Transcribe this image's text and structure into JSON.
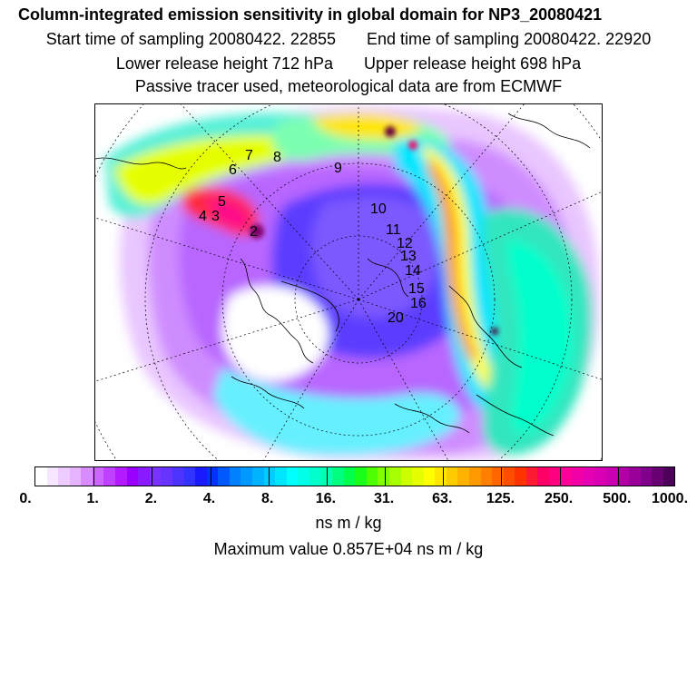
{
  "title": {
    "main": "Column-integrated emission sensitivity in global domain for NP3_20080421",
    "start_label": "Start time of sampling 20080422. 22855",
    "end_label": "End time of sampling 20080422. 22920",
    "lower_label": "Lower release height  712 hPa",
    "upper_label": "Upper release height  698 hPa",
    "tracer_label": "Passive tracer used, meteorological data are from ECMWF"
  },
  "trajectory_labels": [
    "2",
    "3",
    "4",
    "5",
    "6",
    "7",
    "8",
    "9",
    "10",
    "11",
    "12",
    "13",
    "14",
    "15",
    "16",
    "20"
  ],
  "colorbar": {
    "tick_labels": [
      "0.",
      "1.",
      "2.",
      "4.",
      "8.",
      "16.",
      "31.",
      "63.",
      "125.",
      "250.",
      "500.",
      "1000."
    ],
    "colors": [
      "#ffffff",
      "#f7e6ff",
      "#efccff",
      "#e6b3ff",
      "#d98cff",
      "#cc66ff",
      "#bf40ff",
      "#b31aff",
      "#9900ff",
      "#8a1aff",
      "#7a33ff",
      "#6633ff",
      "#4d33ff",
      "#3333ff",
      "#1a1aff",
      "#0033ff",
      "#0059ff",
      "#0080ff",
      "#0099ff",
      "#00b3ff",
      "#00ccff",
      "#00e6ff",
      "#00ffff",
      "#00ffe6",
      "#00ffcc",
      "#00ffb3",
      "#00ff80",
      "#00ff4d",
      "#1aff1a",
      "#4dff00",
      "#80ff00",
      "#a6ff00",
      "#ccff00",
      "#e6ff00",
      "#ffff00",
      "#ffe600",
      "#ffcc00",
      "#ffb300",
      "#ff9900",
      "#ff8000",
      "#ff6600",
      "#ff4d00",
      "#ff3300",
      "#ff1a33",
      "#ff0066",
      "#ff0080",
      "#ff0099",
      "#f200a6",
      "#e600b3",
      "#d900b3",
      "#cc00b3",
      "#b300a6",
      "#990099",
      "#80008c",
      "#660073",
      "#4d0059"
    ],
    "units": "ns m / kg",
    "max_label": "Maximum value  0.857E+04 ns m / kg"
  }
}
